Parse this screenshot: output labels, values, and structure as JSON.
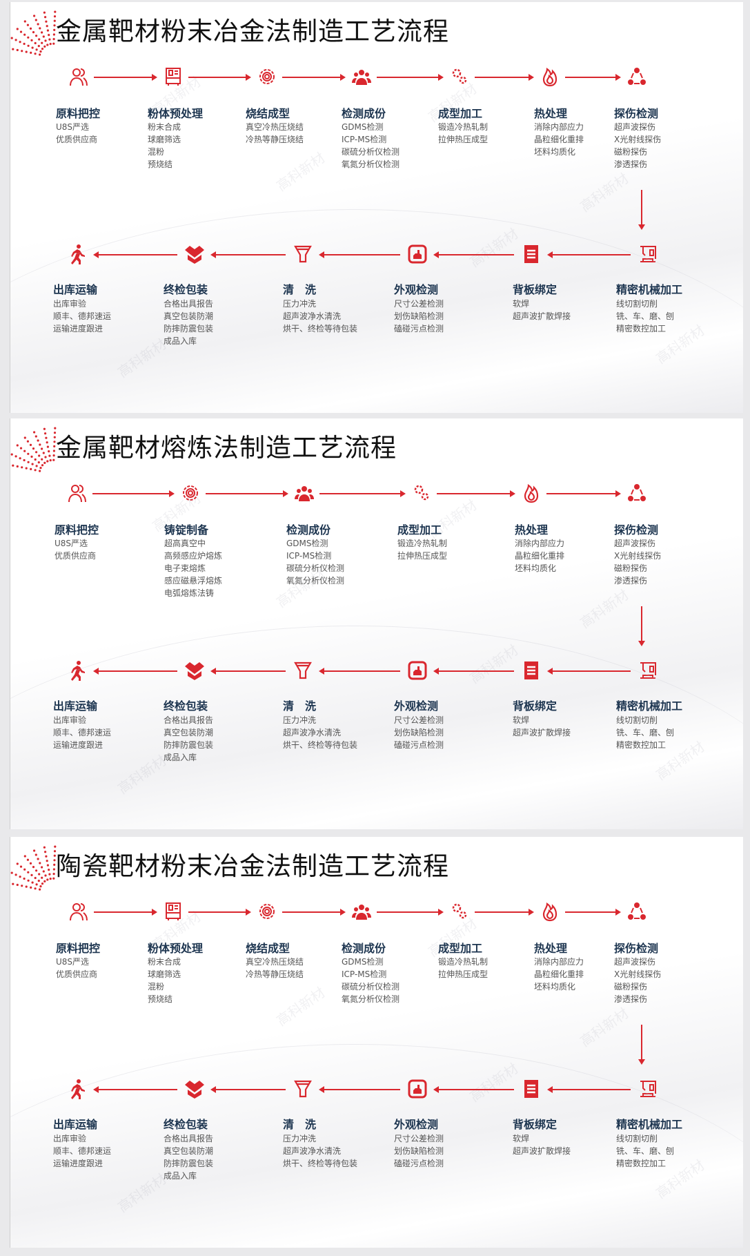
{
  "accent_color": "#d9272e",
  "heading_color": "#1d3550",
  "watermark": "高科新材",
  "sections": [
    {
      "title": "金属靶材粉末冶金法制造工艺流程",
      "top": [
        {
          "icon": "users-icon",
          "title": "原料把控",
          "lines": [
            "U8S严选",
            "优质供应商"
          ]
        },
        {
          "icon": "machine-icon",
          "title": "粉体预处理",
          "lines": [
            "粉末合成",
            "球磨筛选",
            "混粉",
            "预烧结"
          ]
        },
        {
          "icon": "gear-icon",
          "title": "烧结成型",
          "lines": [
            "真空冷热压烧结",
            "冷热等静压烧结"
          ]
        },
        {
          "icon": "team-icon",
          "title": "检测成份",
          "lines": [
            "GDMS检测",
            "ICP-MS检测",
            "碳硫分析仪检测",
            "氧氮分析仪检测"
          ]
        },
        {
          "icon": "cogs-icon",
          "title": "成型加工",
          "lines": [
            "锻造冷热轧制",
            "拉伸热压成型"
          ]
        },
        {
          "icon": "flame-icon",
          "title": "热处理",
          "lines": [
            "消除内部应力",
            "晶粒细化重排",
            "坯料均质化"
          ]
        },
        {
          "icon": "cycle-icon",
          "title": "探伤检测",
          "lines": [
            "超声波探伤",
            "X光射线探伤",
            "磁粉探伤",
            "渗透探伤"
          ]
        }
      ],
      "bottom": [
        {
          "icon": "cnc-icon",
          "title": "精密机械加工",
          "lines": [
            "线切割切削",
            "铣、车、磨、刨",
            "精密数控加工"
          ]
        },
        {
          "icon": "document-icon",
          "title": "背板绑定",
          "lines": [
            "软焊",
            "超声波扩散焊接"
          ]
        },
        {
          "icon": "inspection-icon",
          "title": "外观检测",
          "lines": [
            "尺寸公差检测",
            "划伤缺陷检测",
            "磕碰污点检测"
          ]
        },
        {
          "icon": "funnel-icon",
          "title": "清　洗",
          "lines": [
            "压力冲洗",
            "超声波净水清洗",
            "烘干、终检等待包装"
          ]
        },
        {
          "icon": "box-icon",
          "title": "终检包装",
          "lines": [
            "合格出具报告",
            "真空包装防潮",
            "防摔防震包装",
            "成品入库"
          ]
        },
        {
          "icon": "walking-icon",
          "title": "出库运输",
          "lines": [
            "出库审验",
            "顺丰、德邦速运",
            "运输进度跟进"
          ]
        }
      ]
    },
    {
      "title": "金属靶材熔炼法制造工艺流程",
      "top": [
        {
          "icon": "users-icon",
          "title": "原料把控",
          "lines": [
            "U8S严选",
            "优质供应商"
          ]
        },
        {
          "icon": "gear-icon",
          "title": "铸锭制备",
          "lines": [
            "超高真空中",
            "高频感应炉熔炼",
            "电子束熔炼",
            "感应磁悬浮熔炼",
            "电弧熔炼法铸"
          ]
        },
        {
          "icon": "team-icon",
          "title": "检测成份",
          "lines": [
            "GDMS检测",
            "ICP-MS检测",
            "碳硫分析仪检测",
            "氧氮分析仪检测"
          ]
        },
        {
          "icon": "cogs-icon",
          "title": "成型加工",
          "lines": [
            "锻造冷热轧制",
            "拉伸热压成型"
          ]
        },
        {
          "icon": "flame-icon",
          "title": "热处理",
          "lines": [
            "消除内部应力",
            "晶粒细化重排",
            "坯料均质化"
          ]
        },
        {
          "icon": "cycle-icon",
          "title": "探伤检测",
          "lines": [
            "超声波探伤",
            "X光射线探伤",
            "磁粉探伤",
            "渗透探伤"
          ]
        }
      ],
      "bottom": [
        {
          "icon": "cnc-icon",
          "title": "精密机械加工",
          "lines": [
            "线切割切削",
            "铣、车、磨、刨",
            "精密数控加工"
          ]
        },
        {
          "icon": "document-icon",
          "title": "背板绑定",
          "lines": [
            "软焊",
            "超声波扩散焊接"
          ]
        },
        {
          "icon": "inspection-icon",
          "title": "外观检测",
          "lines": [
            "尺寸公差检测",
            "划伤缺陷检测",
            "磕碰污点检测"
          ]
        },
        {
          "icon": "funnel-icon",
          "title": "清　洗",
          "lines": [
            "压力冲洗",
            "超声波净水清洗",
            "烘干、终检等待包装"
          ]
        },
        {
          "icon": "box-icon",
          "title": "终检包装",
          "lines": [
            "合格出具报告",
            "真空包装防潮",
            "防摔防震包装",
            "成品入库"
          ]
        },
        {
          "icon": "walking-icon",
          "title": "出库运输",
          "lines": [
            "出库审验",
            "顺丰、德邦速运",
            "运输进度跟进"
          ]
        }
      ]
    },
    {
      "title": "陶瓷靶材粉末冶金法制造工艺流程",
      "top": [
        {
          "icon": "users-icon",
          "title": "原料把控",
          "lines": [
            "U8S严选",
            "优质供应商"
          ]
        },
        {
          "icon": "machine-icon",
          "title": "粉体预处理",
          "lines": [
            "粉末合成",
            "球磨筛选",
            "混粉",
            "预烧结"
          ]
        },
        {
          "icon": "gear-icon",
          "title": "烧结成型",
          "lines": [
            "真空冷热压烧结",
            "冷热等静压烧结"
          ]
        },
        {
          "icon": "team-icon",
          "title": "检测成份",
          "lines": [
            "GDMS检测",
            "ICP-MS检测",
            "碳硫分析仪检测",
            "氧氮分析仪检测"
          ]
        },
        {
          "icon": "cogs-icon",
          "title": "成型加工",
          "lines": [
            "锻造冷热轧制",
            "拉伸热压成型"
          ]
        },
        {
          "icon": "flame-icon",
          "title": "热处理",
          "lines": [
            "消除内部应力",
            "晶粒细化重排",
            "坯料均质化"
          ]
        },
        {
          "icon": "cycle-icon",
          "title": "探伤检测",
          "lines": [
            "超声波探伤",
            "X光射线探伤",
            "磁粉探伤",
            "渗透探伤"
          ]
        }
      ],
      "bottom": [
        {
          "icon": "cnc-icon",
          "title": "精密机械加工",
          "lines": [
            "线切割切削",
            "铣、车、磨、刨",
            "精密数控加工"
          ]
        },
        {
          "icon": "document-icon",
          "title": "背板绑定",
          "lines": [
            "软焊",
            "超声波扩散焊接"
          ]
        },
        {
          "icon": "inspection-icon",
          "title": "外观检测",
          "lines": [
            "尺寸公差检测",
            "划伤缺陷检测",
            "磕碰污点检测"
          ]
        },
        {
          "icon": "funnel-icon",
          "title": "清　洗",
          "lines": [
            "压力冲洗",
            "超声波净水清洗",
            "烘干、终检等待包装"
          ]
        },
        {
          "icon": "box-icon",
          "title": "终检包装",
          "lines": [
            "合格出具报告",
            "真空包装防潮",
            "防摔防震包装",
            "成品入库"
          ]
        },
        {
          "icon": "walking-icon",
          "title": "出库运输",
          "lines": [
            "出库审验",
            "顺丰、德邦速运",
            "运输进度跟进"
          ]
        }
      ]
    }
  ]
}
